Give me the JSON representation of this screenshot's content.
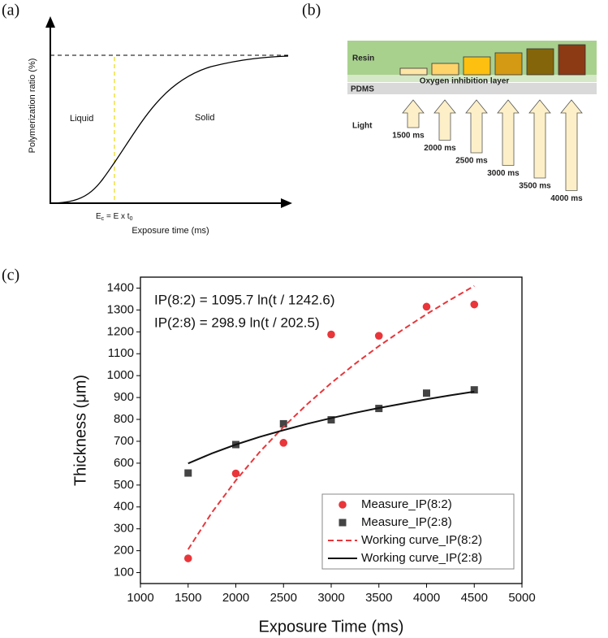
{
  "panel_a": {
    "label": "(a)",
    "y_label": "Polymerization ratio (%)",
    "x_label": "Exposure time (ms)",
    "liquid": "Liquid",
    "solid": "Solid",
    "threshold": {
      "symbol": "E",
      "sub": "c",
      "middle": " = E x t",
      "sub2": "0"
    }
  },
  "panel_b": {
    "label": "(b)",
    "resin": "Resin",
    "oxygen": "Oxygen inhibition layer",
    "pdms": "PDMS",
    "light": "Light",
    "exposures": [
      "1500 ms",
      "2000 ms",
      "2500 ms",
      "3000 ms",
      "3500 ms",
      "4000 ms"
    ]
  },
  "panel_c_label": "(c)",
  "chart_data": {
    "type": "scatter",
    "x_label": "Exposure Time (ms)",
    "y_label": "Thickness (μm)",
    "annotations": [
      "IP(8:2) = 1095.7 ln(t / 1242.6)",
      "IP(2:8) = 298.9 ln(t / 202.5)"
    ],
    "xlim": [
      1000,
      5000
    ],
    "xticks": [
      1000,
      1500,
      2000,
      2500,
      3000,
      3500,
      4000,
      4500,
      5000
    ],
    "ylim": [
      50,
      1450
    ],
    "yticks": [
      100,
      200,
      300,
      400,
      500,
      600,
      700,
      800,
      900,
      1000,
      1100,
      1200,
      1300,
      1400
    ],
    "legend": "lower right",
    "series": [
      {
        "name": "Measure_IP(8:2)",
        "type": "scatter",
        "marker": "circle",
        "color": "#e8363a",
        "x": [
          1500,
          2000,
          2500,
          3000,
          3500,
          4000,
          4500
        ],
        "values": [
          165,
          553,
          693,
          1188,
          1182,
          1315,
          1325
        ]
      },
      {
        "name": "Measure_IP(2:8)",
        "type": "scatter",
        "marker": "square",
        "color": "#444444",
        "x": [
          1500,
          2000,
          2500,
          3000,
          3500,
          4000,
          4500
        ],
        "values": [
          555,
          685,
          780,
          798,
          850,
          920,
          935
        ]
      },
      {
        "name": "Working curve_IP(8:2)",
        "type": "line",
        "dashed": true,
        "color": "#e8363a",
        "x": [
          1500,
          1750,
          2000,
          2250,
          2500,
          2750,
          3000,
          3250,
          3500,
          3750,
          4000,
          4250,
          4500
        ],
        "values": [
          206,
          375,
          521,
          651,
          766,
          870,
          966,
          1054,
          1135,
          1210,
          1281,
          1347,
          1410
        ]
      },
      {
        "name": "Working curve_IP(2:8)",
        "type": "line",
        "dashed": false,
        "color": "#111111",
        "x": [
          1500,
          1750,
          2000,
          2250,
          2500,
          2750,
          3000,
          3250,
          3500,
          3750,
          4000,
          4250,
          4500
        ],
        "values": [
          599,
          645,
          685,
          720,
          751,
          780,
          806,
          830,
          852,
          872,
          892,
          910,
          927
        ]
      }
    ]
  }
}
